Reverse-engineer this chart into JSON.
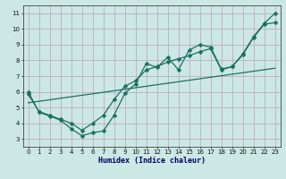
{
  "xlabel": "Humidex (Indice chaleur)",
  "bg_color": "#cce8e4",
  "grid_color": "#c0aac0",
  "line_color": "#1a7060",
  "xlim": [
    -0.5,
    23.5
  ],
  "ylim": [
    2.5,
    11.5
  ],
  "xticks": [
    0,
    1,
    2,
    3,
    4,
    5,
    6,
    7,
    8,
    9,
    10,
    11,
    12,
    13,
    14,
    15,
    16,
    17,
    18,
    19,
    20,
    21,
    22,
    23
  ],
  "yticks": [
    3,
    4,
    5,
    6,
    7,
    8,
    9,
    10,
    11
  ],
  "curve1_x": [
    0,
    1,
    2,
    3,
    4,
    5,
    6,
    7,
    8,
    9,
    10,
    11,
    12,
    13,
    14,
    15,
    16,
    17,
    18,
    19,
    20,
    21,
    22,
    23
  ],
  "curve1_y": [
    6.0,
    4.7,
    4.45,
    4.2,
    3.65,
    3.2,
    3.4,
    3.5,
    4.5,
    5.9,
    6.5,
    7.8,
    7.55,
    8.2,
    7.4,
    8.65,
    9.0,
    8.85,
    7.45,
    7.6,
    8.4,
    9.5,
    10.35,
    11.0
  ],
  "curve2_x": [
    0,
    1,
    2,
    3,
    4,
    5,
    6,
    7,
    8,
    9,
    10,
    11,
    12,
    13,
    14,
    15,
    16,
    17,
    18,
    19,
    20,
    21,
    22,
    23
  ],
  "curve2_y": [
    5.85,
    4.75,
    4.5,
    4.25,
    4.0,
    3.55,
    4.0,
    4.5,
    5.5,
    6.35,
    6.7,
    7.4,
    7.6,
    7.9,
    8.1,
    8.3,
    8.55,
    8.75,
    7.4,
    7.6,
    8.35,
    9.45,
    10.3,
    10.4
  ],
  "line3_x": [
    0,
    23
  ],
  "line3_y": [
    5.3,
    7.5
  ],
  "xlabel_fontsize": 6,
  "tick_fontsize": 5,
  "marker_size": 2.5,
  "line_width": 0.9
}
